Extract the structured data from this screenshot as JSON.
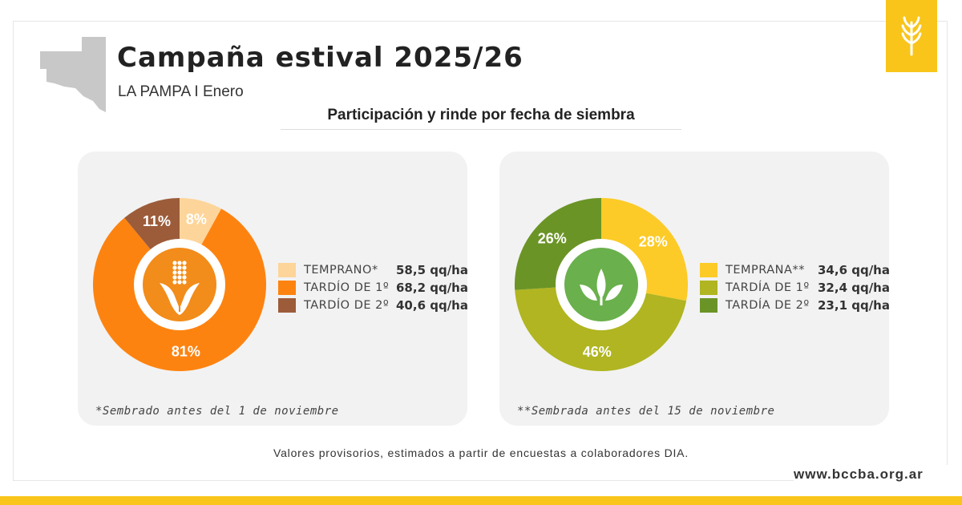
{
  "header": {
    "title": "Campaña estival 2025/26",
    "subtitle": "LA PAMPA I Enero",
    "section_title": "Participación y rinde por fecha de siembra"
  },
  "chart_data": [
    {
      "type": "pie",
      "crop_icon": "corn-icon",
      "categories": [
        "TEMPRANO*",
        "TARDÍO DE 1º",
        "TARDÍO DE 2º"
      ],
      "values": [
        8,
        81,
        11
      ],
      "value_labels": [
        "8%",
        "81%",
        "11%"
      ],
      "yields": [
        "58,5 qq/ha",
        "68,2 qq/ha",
        "40,6 qq/ha"
      ],
      "colors": [
        "#fdd59a",
        "#fd8310",
        "#9c5c3a"
      ],
      "center_color": "#f28c1a",
      "footnote": "*Sembrado antes del 1 de noviembre"
    },
    {
      "type": "pie",
      "crop_icon": "soybean-sprout-icon",
      "categories": [
        "TEMPRANA**",
        "TARDÍA DE 1º",
        "TARDÍA DE 2º"
      ],
      "values": [
        28,
        46,
        26
      ],
      "value_labels": [
        "28%",
        "46%",
        "26%"
      ],
      "yields": [
        "34,6 qq/ha",
        "32,4 qq/ha",
        "23,1 qq/ha"
      ],
      "colors": [
        "#fccb27",
        "#b0b521",
        "#6b9426"
      ],
      "center_color": "#6ab04c",
      "footnote": "**Sembrada antes del 15 de noviembre"
    }
  ],
  "footer": {
    "note": "Valores provisorios, estimados a partir de encuestas a colaboradores DIA.",
    "website": "www.bccba.org.ar"
  },
  "colors": {
    "brand_yellow": "#f9c51a",
    "panel_bg": "#f2f2f2",
    "map_gray": "#c8c8c8"
  }
}
